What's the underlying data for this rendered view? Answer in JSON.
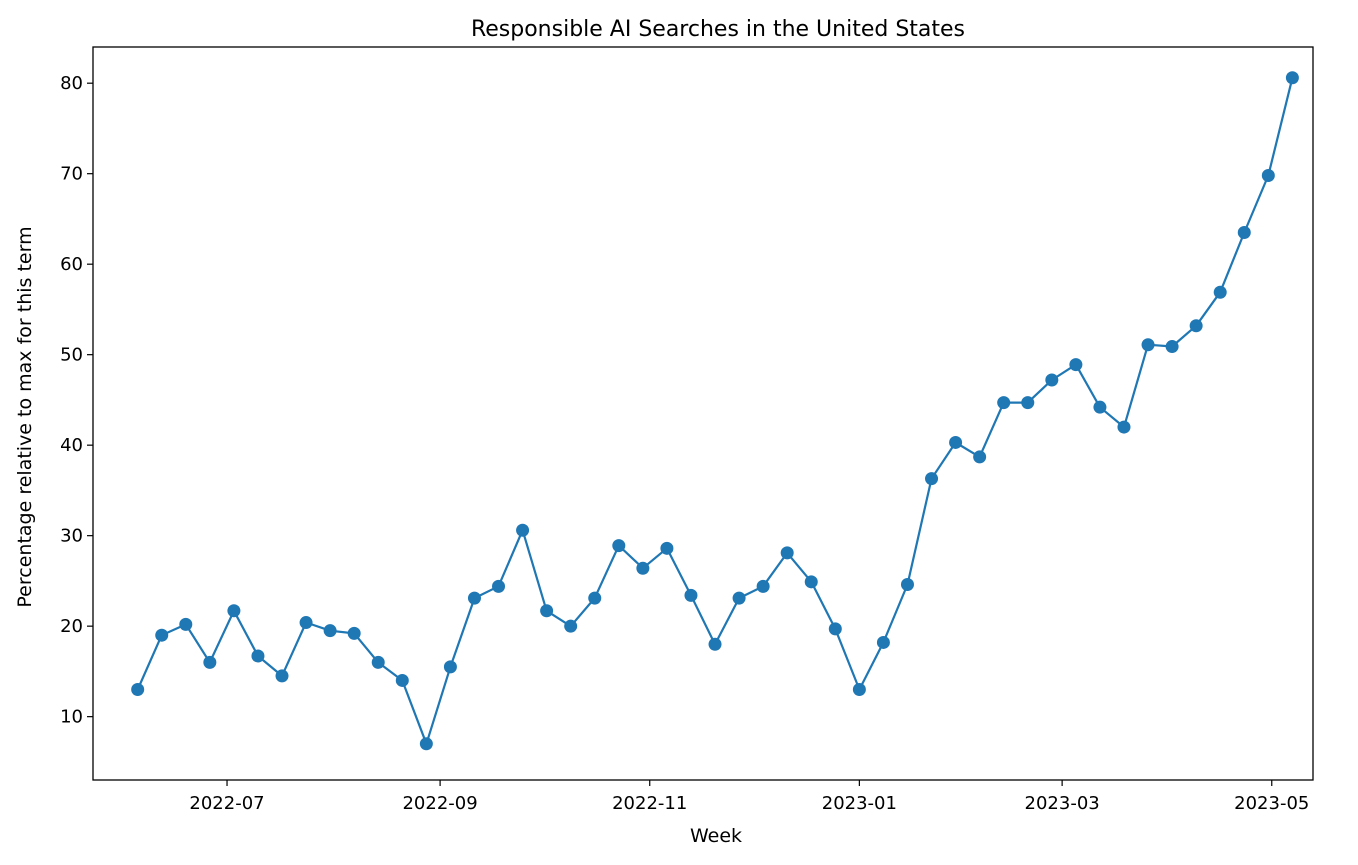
{
  "chart_data": {
    "type": "line",
    "title": "Responsible AI Searches in the United States",
    "xlabel": "Week",
    "ylabel": "Percentage relative to max for this term",
    "x_is_date": true,
    "xlim": [
      "2022-05-23",
      "2023-05-13"
    ],
    "ylim": [
      3,
      84
    ],
    "xticks": [
      {
        "value": "2022-07-01",
        "label": "2022-07"
      },
      {
        "value": "2022-09-01",
        "label": "2022-09"
      },
      {
        "value": "2022-11-01",
        "label": "2022-11"
      },
      {
        "value": "2023-01-01",
        "label": "2023-01"
      },
      {
        "value": "2023-03-01",
        "label": "2023-03"
      },
      {
        "value": "2023-05-01",
        "label": "2023-05"
      }
    ],
    "yticks": [
      10,
      20,
      30,
      40,
      50,
      60,
      70,
      80
    ],
    "grid": false,
    "series": [
      {
        "color": "#1f77b4",
        "marker": "circle",
        "x": [
          "2022-06-05",
          "2022-06-12",
          "2022-06-19",
          "2022-06-26",
          "2022-07-03",
          "2022-07-10",
          "2022-07-17",
          "2022-07-24",
          "2022-07-31",
          "2022-08-07",
          "2022-08-14",
          "2022-08-21",
          "2022-08-28",
          "2022-09-04",
          "2022-09-11",
          "2022-09-18",
          "2022-09-25",
          "2022-10-02",
          "2022-10-09",
          "2022-10-16",
          "2022-10-23",
          "2022-10-30",
          "2022-11-06",
          "2022-11-13",
          "2022-11-20",
          "2022-11-27",
          "2022-12-04",
          "2022-12-11",
          "2022-12-18",
          "2022-12-25",
          "2023-01-01",
          "2023-01-08",
          "2023-01-15",
          "2023-01-22",
          "2023-01-29",
          "2023-02-05",
          "2023-02-12",
          "2023-02-19",
          "2023-02-26",
          "2023-03-05",
          "2023-03-12",
          "2023-03-19",
          "2023-03-26",
          "2023-04-02",
          "2023-04-09",
          "2023-04-16",
          "2023-04-23",
          "2023-04-30",
          "2023-05-07"
        ],
        "y": [
          13,
          19,
          20.2,
          16,
          21.7,
          16.7,
          14.5,
          20.4,
          19.5,
          19.2,
          16,
          14,
          7,
          15.5,
          23.1,
          24.4,
          30.6,
          21.7,
          20,
          23.1,
          28.9,
          26.4,
          28.6,
          23.4,
          18,
          23.1,
          24.4,
          28.1,
          24.9,
          19.7,
          13,
          18.2,
          24.6,
          36.3,
          40.3,
          38.7,
          44.7,
          44.7,
          47.2,
          48.9,
          44.2,
          42,
          51.1,
          50.9,
          53.2,
          56.9,
          63.5,
          69.8,
          80.6
        ]
      }
    ]
  }
}
